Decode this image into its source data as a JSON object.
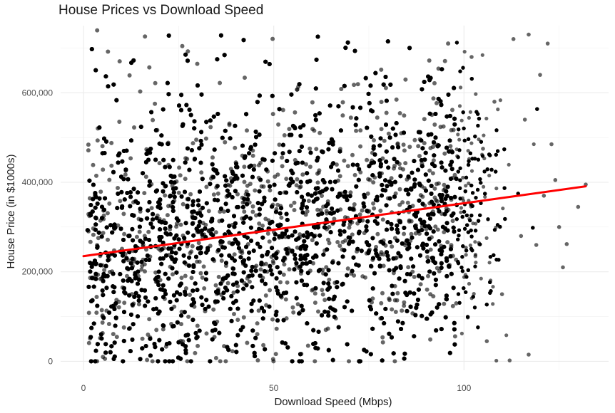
{
  "chart_data": {
    "type": "scatter",
    "title": "House Prices vs Download Speed",
    "xlabel": "Download Speed (Mbps)",
    "ylabel": "House Price (in $1000s)",
    "xlim": [
      -6,
      138
    ],
    "ylim": [
      -20000,
      750000
    ],
    "x_ticks": [
      0,
      50,
      100
    ],
    "x_tick_labels": [
      "0",
      "50",
      "100"
    ],
    "y_ticks": [
      0,
      200000,
      400000,
      600000
    ],
    "y_tick_labels": [
      "0",
      "200,000",
      "400,000",
      "600,000"
    ],
    "grid": true,
    "point_color": "#000000",
    "point_opacity": 0.6,
    "trend_line": {
      "color": "#ff0000",
      "x": [
        0,
        132
      ],
      "y": [
        235000,
        391000
      ]
    },
    "sample_points": [
      {
        "x": 132,
        "y": 395000
      },
      {
        "x": 130,
        "y": 345000
      },
      {
        "x": 127,
        "y": 262000
      },
      {
        "x": 126,
        "y": 210000
      },
      {
        "x": 125,
        "y": 300000
      },
      {
        "x": 124,
        "y": 405000
      },
      {
        "x": 123,
        "y": 485000
      },
      {
        "x": 122,
        "y": 710000
      },
      {
        "x": 121,
        "y": 370000
      },
      {
        "x": 120,
        "y": 640000
      },
      {
        "x": 119,
        "y": 260000
      },
      {
        "x": 117,
        "y": 730000
      },
      {
        "x": 117,
        "y": 15000
      },
      {
        "x": 116,
        "y": 540000
      },
      {
        "x": 115,
        "y": 280000
      },
      {
        "x": 113,
        "y": 720000
      },
      {
        "x": 112,
        "y": 2000
      },
      {
        "x": 110,
        "y": 150000
      },
      {
        "x": 108,
        "y": 580000
      },
      {
        "x": 106,
        "y": 45000
      },
      {
        "x": 105,
        "y": 475000
      },
      {
        "x": 103,
        "y": 235000
      },
      {
        "x": 102,
        "y": 680000
      },
      {
        "x": 101,
        "y": 98000
      }
    ]
  }
}
